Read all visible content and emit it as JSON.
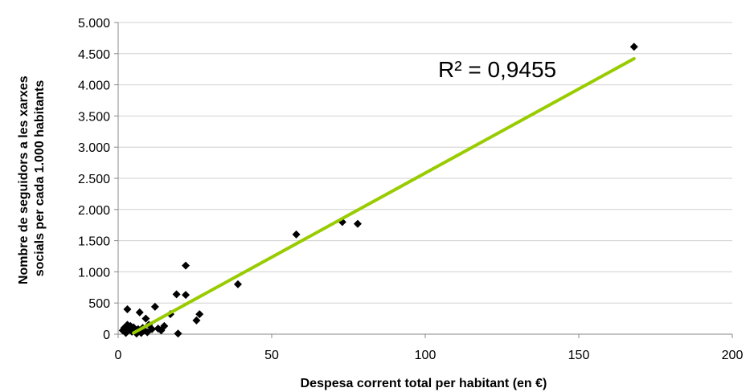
{
  "chart_data": {
    "type": "scatter",
    "title": "",
    "xlabel": "Despesa corrent total per habitant (en €)",
    "ylabel_lines": [
      "Nombre de seguidors a les xarxes",
      "socials per cada 1.000 habitants"
    ],
    "xlim": [
      0,
      200
    ],
    "ylim": [
      0,
      5000
    ],
    "x_ticks": [
      0,
      50,
      100,
      150,
      200
    ],
    "x_tick_labels": [
      "0",
      "50",
      "100",
      "150",
      "200"
    ],
    "y_ticks": [
      0,
      500,
      1000,
      1500,
      2000,
      2500,
      3000,
      3500,
      4000,
      4500,
      5000
    ],
    "y_tick_labels": [
      "0",
      "500",
      "1.000",
      "1.500",
      "2.000",
      "2.500",
      "3.000",
      "3.500",
      "4.000",
      "4.500",
      "5.000"
    ],
    "grid": {
      "horizontal": true,
      "vertical": false
    },
    "marker": "diamond",
    "marker_color": "#000000",
    "trendline_color": "#99cc00",
    "r_squared_label": "R² = 0,9455",
    "trendline": {
      "x": [
        5,
        168
      ],
      "y": [
        20,
        4420
      ]
    },
    "points": [
      {
        "x": 1.5,
        "y": 60
      },
      {
        "x": 2,
        "y": 100
      },
      {
        "x": 2.5,
        "y": 20
      },
      {
        "x": 3,
        "y": 150
      },
      {
        "x": 3,
        "y": 400
      },
      {
        "x": 3.5,
        "y": 80
      },
      {
        "x": 4,
        "y": 130
      },
      {
        "x": 4.5,
        "y": 40
      },
      {
        "x": 5,
        "y": 110
      },
      {
        "x": 5.5,
        "y": 60
      },
      {
        "x": 6,
        "y": 10
      },
      {
        "x": 6.5,
        "y": 80
      },
      {
        "x": 7,
        "y": 350
      },
      {
        "x": 7.5,
        "y": 20
      },
      {
        "x": 8,
        "y": 100
      },
      {
        "x": 8.5,
        "y": 60
      },
      {
        "x": 9,
        "y": 250
      },
      {
        "x": 9.5,
        "y": 30
      },
      {
        "x": 10,
        "y": 150
      },
      {
        "x": 11,
        "y": 80
      },
      {
        "x": 12,
        "y": 440
      },
      {
        "x": 13,
        "y": 90
      },
      {
        "x": 14,
        "y": 60
      },
      {
        "x": 15,
        "y": 130
      },
      {
        "x": 17,
        "y": 320
      },
      {
        "x": 19,
        "y": 640
      },
      {
        "x": 19.5,
        "y": 10
      },
      {
        "x": 22,
        "y": 630
      },
      {
        "x": 22,
        "y": 1100
      },
      {
        "x": 25.5,
        "y": 220
      },
      {
        "x": 26.5,
        "y": 320
      },
      {
        "x": 39,
        "y": 800
      },
      {
        "x": 58,
        "y": 1600
      },
      {
        "x": 73,
        "y": 1800
      },
      {
        "x": 78,
        "y": 1770
      },
      {
        "x": 168,
        "y": 4610
      }
    ]
  }
}
